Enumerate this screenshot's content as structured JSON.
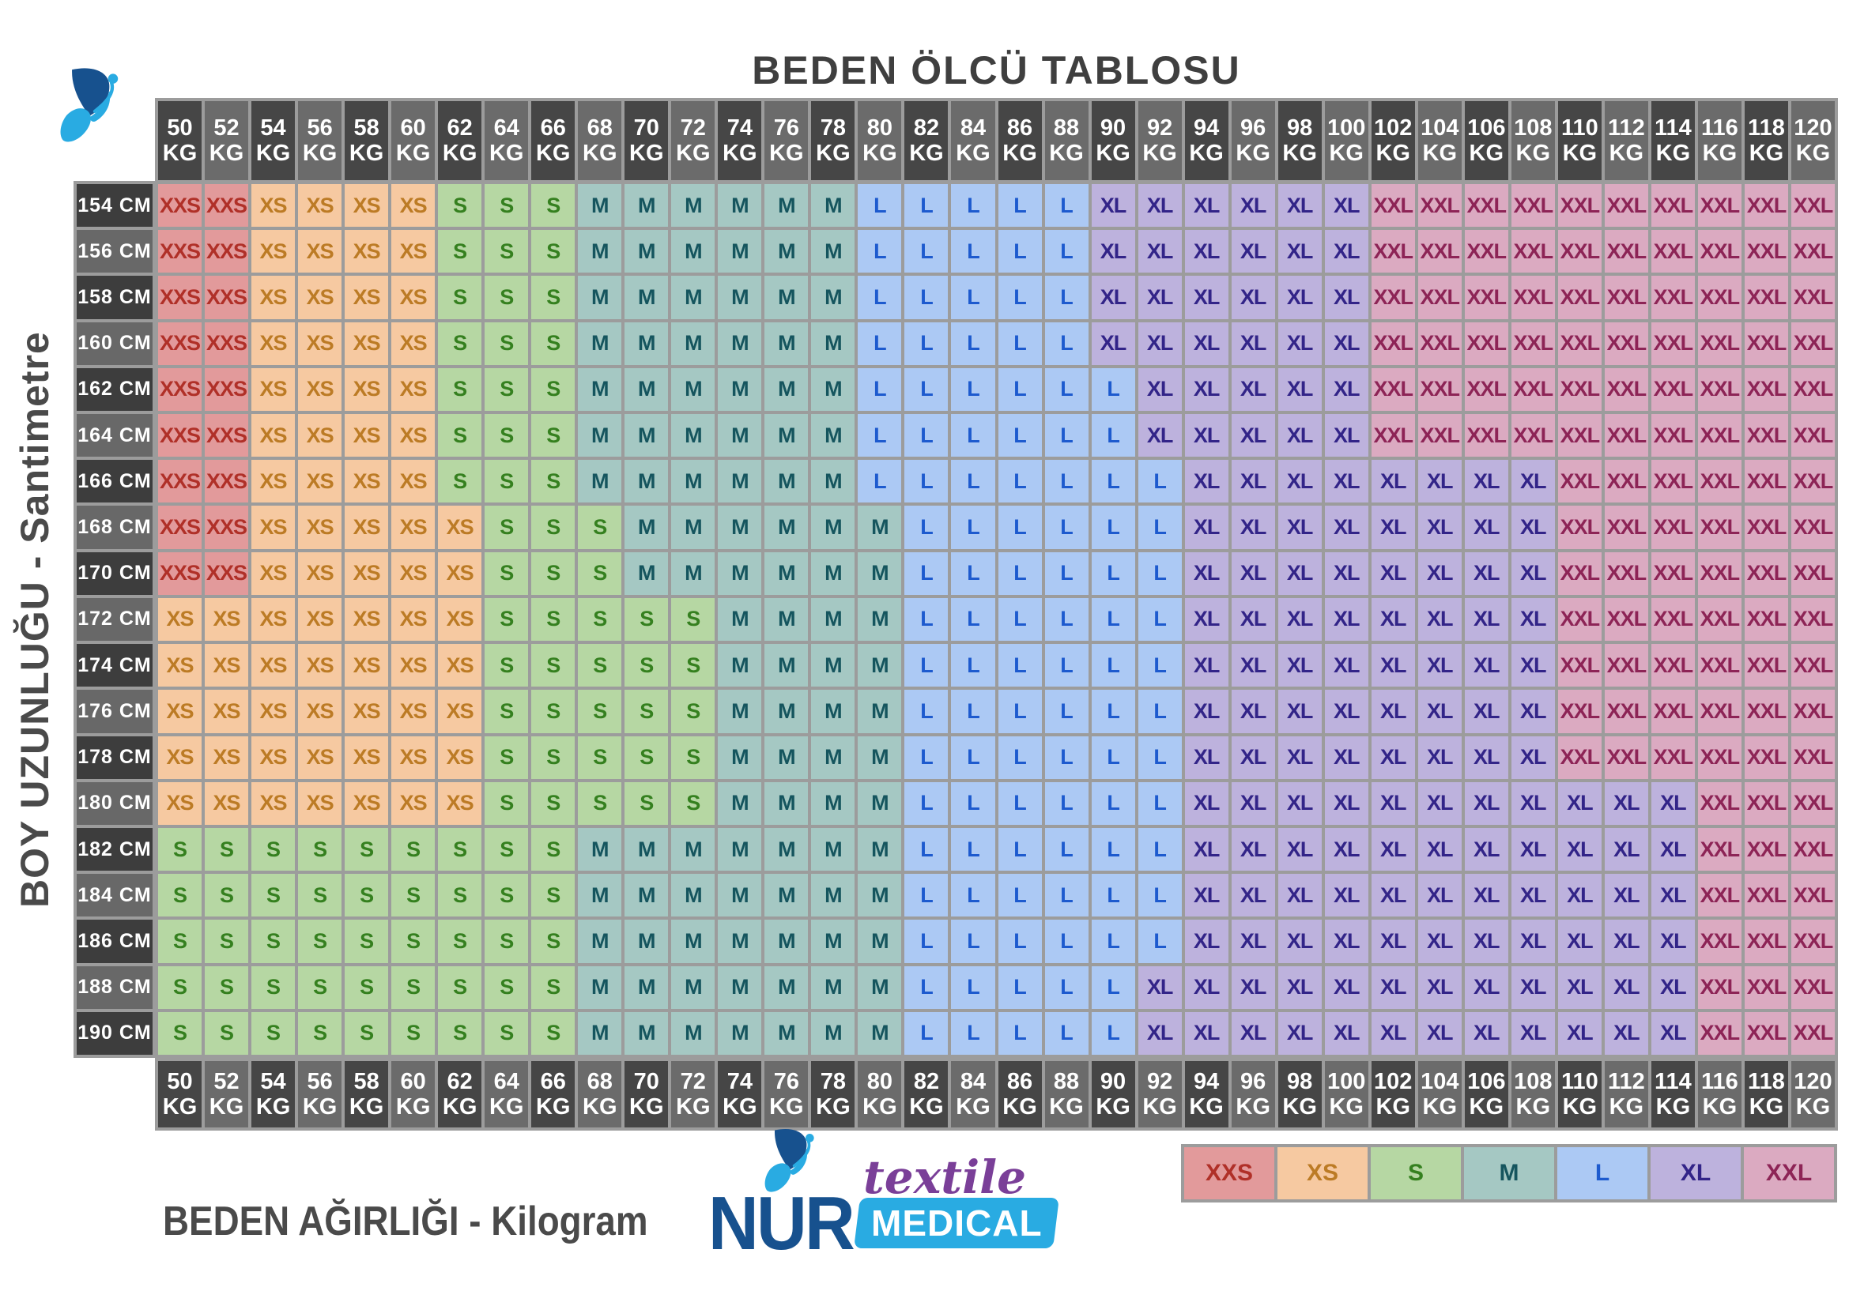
{
  "title": "BEDEN ÖLCÜ TABLOSU",
  "axes": {
    "x_label": "BEDEN AĞIRLIĞI - Kilogram",
    "y_label": "BOY UZUNLUĞU - Santimetre",
    "weight_unit": "KG",
    "height_unit": "CM"
  },
  "legend": {
    "items": [
      "XXS",
      "XS",
      "S",
      "M",
      "L",
      "XL",
      "XXL"
    ]
  },
  "brand": {
    "name_primary": "NUR",
    "name_script": "textile",
    "name_badge": "MEDICAL",
    "butterfly_icon": "butterfly-icon"
  },
  "colors": {
    "sizes": {
      "XXS": {
        "bg": "#e29a9b",
        "text": "#b03028"
      },
      "XS": {
        "bg": "#f6c9a1",
        "text": "#bc7b25"
      },
      "S": {
        "bg": "#b6d7a3",
        "text": "#35801f"
      },
      "M": {
        "bg": "#a5c8c3",
        "text": "#15555e"
      },
      "L": {
        "bg": "#acc9f4",
        "text": "#1d5ace"
      },
      "XL": {
        "bg": "#bdb2dd",
        "text": "#322488"
      },
      "XXL": {
        "bg": "#dbaac1",
        "text": "#8d2456"
      }
    },
    "header_dark": "#464646",
    "header_light": "#6b6b6b",
    "header_text": "#ffffff",
    "label_dark": "#3d3d3d",
    "label_light": "#686868",
    "label_text": "#ffffff",
    "grid_line": "#9c9c9c",
    "axis_text": "#4a4a4a",
    "brand_dark_blue": "#17518e",
    "brand_light_blue": "#29abe2",
    "brand_purple": "#7a3f98"
  },
  "chart_data": {
    "type": "heatmap",
    "title": "BEDEN ÖLCÜ TABLOSU",
    "xlabel": "BEDEN AĞIRLIĞI - Kilogram",
    "ylabel": "BOY UZUNLUĞU - Santimetre",
    "legend_position": "bottom-right",
    "x_categories_kg": [
      50,
      52,
      54,
      56,
      58,
      60,
      62,
      64,
      66,
      68,
      70,
      72,
      74,
      76,
      78,
      80,
      82,
      84,
      86,
      88,
      90,
      92,
      94,
      96,
      98,
      100,
      102,
      104,
      106,
      108,
      110,
      112,
      114,
      116,
      118,
      120
    ],
    "y_categories_cm": [
      154,
      156,
      158,
      160,
      162,
      164,
      166,
      168,
      170,
      172,
      174,
      176,
      178,
      180,
      182,
      184,
      186,
      188,
      190
    ],
    "values": [
      [
        "XXS",
        "XXS",
        "XS",
        "XS",
        "XS",
        "XS",
        "S",
        "S",
        "S",
        "M",
        "M",
        "M",
        "M",
        "M",
        "M",
        "L",
        "L",
        "L",
        "L",
        "L",
        "XL",
        "XL",
        "XL",
        "XL",
        "XL",
        "XL",
        "XXL",
        "XXL",
        "XXL",
        "XXL",
        "XXL",
        "XXL",
        "XXL",
        "XXL",
        "XXL",
        "XXL"
      ],
      [
        "XXS",
        "XXS",
        "XS",
        "XS",
        "XS",
        "XS",
        "S",
        "S",
        "S",
        "M",
        "M",
        "M",
        "M",
        "M",
        "M",
        "L",
        "L",
        "L",
        "L",
        "L",
        "XL",
        "XL",
        "XL",
        "XL",
        "XL",
        "XL",
        "XXL",
        "XXL",
        "XXL",
        "XXL",
        "XXL",
        "XXL",
        "XXL",
        "XXL",
        "XXL",
        "XXL"
      ],
      [
        "XXS",
        "XXS",
        "XS",
        "XS",
        "XS",
        "XS",
        "S",
        "S",
        "S",
        "M",
        "M",
        "M",
        "M",
        "M",
        "M",
        "L",
        "L",
        "L",
        "L",
        "L",
        "XL",
        "XL",
        "XL",
        "XL",
        "XL",
        "XL",
        "XXL",
        "XXL",
        "XXL",
        "XXL",
        "XXL",
        "XXL",
        "XXL",
        "XXL",
        "XXL",
        "XXL"
      ],
      [
        "XXS",
        "XXS",
        "XS",
        "XS",
        "XS",
        "XS",
        "S",
        "S",
        "S",
        "M",
        "M",
        "M",
        "M",
        "M",
        "M",
        "L",
        "L",
        "L",
        "L",
        "L",
        "XL",
        "XL",
        "XL",
        "XL",
        "XL",
        "XL",
        "XXL",
        "XXL",
        "XXL",
        "XXL",
        "XXL",
        "XXL",
        "XXL",
        "XXL",
        "XXL",
        "XXL"
      ],
      [
        "XXS",
        "XXS",
        "XS",
        "XS",
        "XS",
        "XS",
        "S",
        "S",
        "S",
        "M",
        "M",
        "M",
        "M",
        "M",
        "M",
        "L",
        "L",
        "L",
        "L",
        "L",
        "L",
        "XL",
        "XL",
        "XL",
        "XL",
        "XL",
        "XXL",
        "XXL",
        "XXL",
        "XXL",
        "XXL",
        "XXL",
        "XXL",
        "XXL",
        "XXL",
        "XXL"
      ],
      [
        "XXS",
        "XXS",
        "XS",
        "XS",
        "XS",
        "XS",
        "S",
        "S",
        "S",
        "M",
        "M",
        "M",
        "M",
        "M",
        "M",
        "L",
        "L",
        "L",
        "L",
        "L",
        "L",
        "XL",
        "XL",
        "XL",
        "XL",
        "XL",
        "XXL",
        "XXL",
        "XXL",
        "XXL",
        "XXL",
        "XXL",
        "XXL",
        "XXL",
        "XXL",
        "XXL"
      ],
      [
        "XXS",
        "XXS",
        "XS",
        "XS",
        "XS",
        "XS",
        "S",
        "S",
        "S",
        "M",
        "M",
        "M",
        "M",
        "M",
        "M",
        "L",
        "L",
        "L",
        "L",
        "L",
        "L",
        "L",
        "XL",
        "XL",
        "XL",
        "XL",
        "XL",
        "XL",
        "XL",
        "XL",
        "XXL",
        "XXL",
        "XXL",
        "XXL",
        "XXL",
        "XXL"
      ],
      [
        "XXS",
        "XXS",
        "XS",
        "XS",
        "XS",
        "XS",
        "XS",
        "S",
        "S",
        "S",
        "M",
        "M",
        "M",
        "M",
        "M",
        "M",
        "L",
        "L",
        "L",
        "L",
        "L",
        "L",
        "XL",
        "XL",
        "XL",
        "XL",
        "XL",
        "XL",
        "XL",
        "XL",
        "XXL",
        "XXL",
        "XXL",
        "XXL",
        "XXL",
        "XXL"
      ],
      [
        "XXS",
        "XXS",
        "XS",
        "XS",
        "XS",
        "XS",
        "XS",
        "S",
        "S",
        "S",
        "M",
        "M",
        "M",
        "M",
        "M",
        "M",
        "L",
        "L",
        "L",
        "L",
        "L",
        "L",
        "XL",
        "XL",
        "XL",
        "XL",
        "XL",
        "XL",
        "XL",
        "XL",
        "XXL",
        "XXL",
        "XXL",
        "XXL",
        "XXL",
        "XXL"
      ],
      [
        "XS",
        "XS",
        "XS",
        "XS",
        "XS",
        "XS",
        "XS",
        "S",
        "S",
        "S",
        "S",
        "S",
        "M",
        "M",
        "M",
        "M",
        "L",
        "L",
        "L",
        "L",
        "L",
        "L",
        "XL",
        "XL",
        "XL",
        "XL",
        "XL",
        "XL",
        "XL",
        "XL",
        "XXL",
        "XXL",
        "XXL",
        "XXL",
        "XXL",
        "XXL"
      ],
      [
        "XS",
        "XS",
        "XS",
        "XS",
        "XS",
        "XS",
        "XS",
        "S",
        "S",
        "S",
        "S",
        "S",
        "M",
        "M",
        "M",
        "M",
        "L",
        "L",
        "L",
        "L",
        "L",
        "L",
        "XL",
        "XL",
        "XL",
        "XL",
        "XL",
        "XL",
        "XL",
        "XL",
        "XXL",
        "XXL",
        "XXL",
        "XXL",
        "XXL",
        "XXL"
      ],
      [
        "XS",
        "XS",
        "XS",
        "XS",
        "XS",
        "XS",
        "XS",
        "S",
        "S",
        "S",
        "S",
        "S",
        "M",
        "M",
        "M",
        "M",
        "L",
        "L",
        "L",
        "L",
        "L",
        "L",
        "XL",
        "XL",
        "XL",
        "XL",
        "XL",
        "XL",
        "XL",
        "XL",
        "XXL",
        "XXL",
        "XXL",
        "XXL",
        "XXL",
        "XXL"
      ],
      [
        "XS",
        "XS",
        "XS",
        "XS",
        "XS",
        "XS",
        "XS",
        "S",
        "S",
        "S",
        "S",
        "S",
        "M",
        "M",
        "M",
        "M",
        "L",
        "L",
        "L",
        "L",
        "L",
        "L",
        "XL",
        "XL",
        "XL",
        "XL",
        "XL",
        "XL",
        "XL",
        "XL",
        "XXL",
        "XXL",
        "XXL",
        "XXL",
        "XXL",
        "XXL"
      ],
      [
        "XS",
        "XS",
        "XS",
        "XS",
        "XS",
        "XS",
        "XS",
        "S",
        "S",
        "S",
        "S",
        "S",
        "M",
        "M",
        "M",
        "M",
        "L",
        "L",
        "L",
        "L",
        "L",
        "L",
        "XL",
        "XL",
        "XL",
        "XL",
        "XL",
        "XL",
        "XL",
        "XL",
        "XL",
        "XL",
        "XL",
        "XXL",
        "XXL",
        "XXL"
      ],
      [
        "S",
        "S",
        "S",
        "S",
        "S",
        "S",
        "S",
        "S",
        "S",
        "M",
        "M",
        "M",
        "M",
        "M",
        "M",
        "M",
        "L",
        "L",
        "L",
        "L",
        "L",
        "L",
        "XL",
        "XL",
        "XL",
        "XL",
        "XL",
        "XL",
        "XL",
        "XL",
        "XL",
        "XL",
        "XL",
        "XXL",
        "XXL",
        "XXL"
      ],
      [
        "S",
        "S",
        "S",
        "S",
        "S",
        "S",
        "S",
        "S",
        "S",
        "M",
        "M",
        "M",
        "M",
        "M",
        "M",
        "M",
        "L",
        "L",
        "L",
        "L",
        "L",
        "L",
        "XL",
        "XL",
        "XL",
        "XL",
        "XL",
        "XL",
        "XL",
        "XL",
        "XL",
        "XL",
        "XL",
        "XXL",
        "XXL",
        "XXL"
      ],
      [
        "S",
        "S",
        "S",
        "S",
        "S",
        "S",
        "S",
        "S",
        "S",
        "M",
        "M",
        "M",
        "M",
        "M",
        "M",
        "M",
        "L",
        "L",
        "L",
        "L",
        "L",
        "L",
        "XL",
        "XL",
        "XL",
        "XL",
        "XL",
        "XL",
        "XL",
        "XL",
        "XL",
        "XL",
        "XL",
        "XXL",
        "XXL",
        "XXL"
      ],
      [
        "S",
        "S",
        "S",
        "S",
        "S",
        "S",
        "S",
        "S",
        "S",
        "M",
        "M",
        "M",
        "M",
        "M",
        "M",
        "M",
        "L",
        "L",
        "L",
        "L",
        "L",
        "XL",
        "XL",
        "XL",
        "XL",
        "XL",
        "XL",
        "XL",
        "XL",
        "XL",
        "XL",
        "XL",
        "XL",
        "XXL",
        "XXL",
        "XXL"
      ],
      [
        "S",
        "S",
        "S",
        "S",
        "S",
        "S",
        "S",
        "S",
        "S",
        "M",
        "M",
        "M",
        "M",
        "M",
        "M",
        "M",
        "L",
        "L",
        "L",
        "L",
        "L",
        "XL",
        "XL",
        "XL",
        "XL",
        "XL",
        "XL",
        "XL",
        "XL",
        "XL",
        "XL",
        "XL",
        "XL",
        "XXL",
        "XXL",
        "XXL"
      ]
    ]
  }
}
